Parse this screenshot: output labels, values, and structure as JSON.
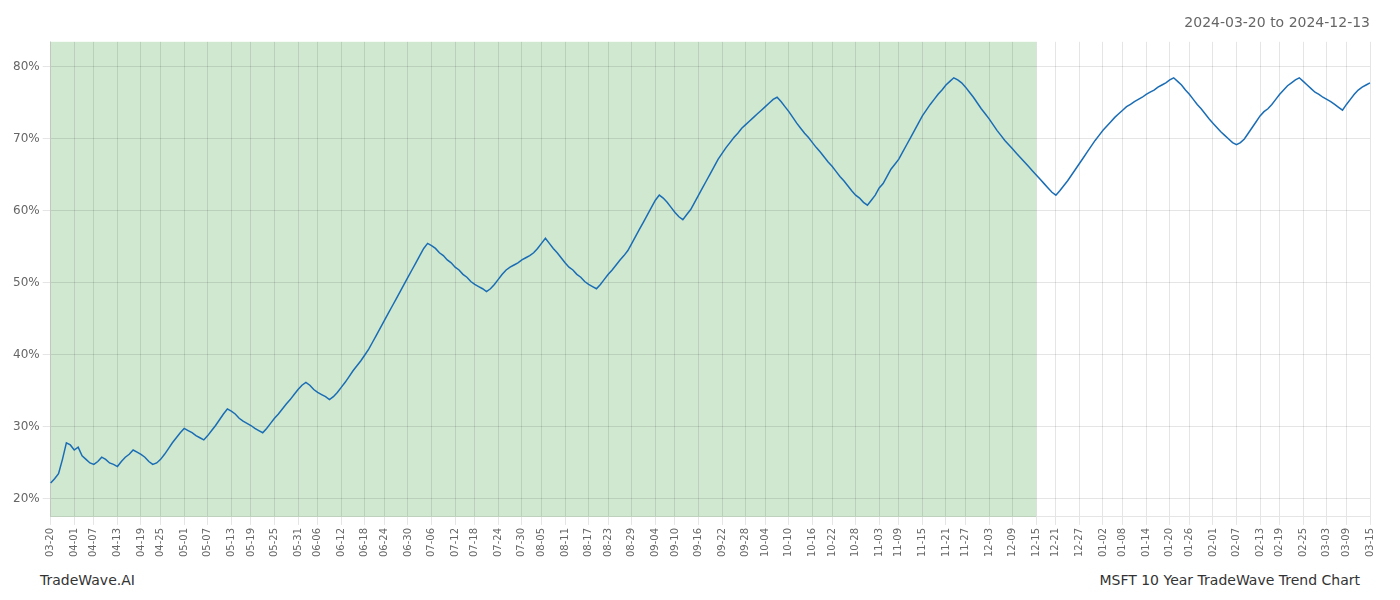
{
  "chart_data": {
    "type": "line",
    "title": "2024-03-20 to 2024-12-13",
    "annotations": [
      "TradeWave.AI",
      "MSFT 10 Year TradeWave Trend Chart"
    ],
    "categories": [
      "03-20",
      null,
      null,
      null,
      null,
      null,
      "04-01",
      null,
      null,
      null,
      null,
      "04-07",
      null,
      null,
      null,
      null,
      null,
      "04-13",
      null,
      null,
      null,
      null,
      null,
      "04-19",
      null,
      null,
      null,
      null,
      "04-25",
      null,
      null,
      null,
      null,
      null,
      "05-01",
      null,
      null,
      null,
      null,
      null,
      "05-07",
      null,
      null,
      null,
      null,
      null,
      "05-13",
      null,
      null,
      null,
      null,
      "05-19",
      null,
      null,
      null,
      null,
      null,
      "05-25",
      null,
      null,
      null,
      null,
      null,
      "05-31",
      null,
      null,
      null,
      null,
      "06-06",
      null,
      null,
      null,
      null,
      null,
      "06-12",
      null,
      null,
      null,
      null,
      null,
      "06-18",
      null,
      null,
      null,
      null,
      "06-24",
      null,
      null,
      null,
      null,
      null,
      "06-30",
      null,
      null,
      null,
      null,
      null,
      "07-06",
      null,
      null,
      null,
      null,
      null,
      "07-12",
      null,
      null,
      null,
      null,
      "07-18",
      null,
      null,
      null,
      null,
      null,
      "07-24",
      null,
      null,
      null,
      null,
      null,
      "07-30",
      null,
      null,
      null,
      null,
      "08-05",
      null,
      null,
      null,
      null,
      null,
      "08-11",
      null,
      null,
      null,
      null,
      null,
      "08-17",
      null,
      null,
      null,
      null,
      "08-23",
      null,
      null,
      null,
      null,
      null,
      "08-29",
      null,
      null,
      null,
      null,
      null,
      "09-04",
      null,
      null,
      null,
      null,
      "09-10",
      null,
      null,
      null,
      null,
      null,
      "09-16",
      null,
      null,
      null,
      null,
      null,
      "09-22",
      null,
      null,
      null,
      null,
      null,
      "09-28",
      null,
      null,
      null,
      null,
      "10-04",
      null,
      null,
      null,
      null,
      null,
      "10-10",
      null,
      null,
      null,
      null,
      null,
      "10-16",
      null,
      null,
      null,
      null,
      "10-22",
      null,
      null,
      null,
      null,
      null,
      "10-28",
      null,
      null,
      null,
      null,
      null,
      "11-03",
      null,
      null,
      null,
      null,
      "11-09",
      null,
      null,
      null,
      null,
      null,
      "11-15",
      null,
      null,
      null,
      null,
      null,
      "11-21",
      null,
      null,
      null,
      null,
      "11-27",
      null,
      null,
      null,
      null,
      null,
      "12-03",
      null,
      null,
      null,
      null,
      null,
      "12-09",
      null,
      null,
      null,
      null,
      null,
      "12-15",
      null,
      null,
      null,
      null,
      "12-21",
      null,
      null,
      null,
      null,
      null,
      "12-27",
      null,
      null,
      null,
      null,
      null,
      "01-02",
      null,
      null,
      null,
      null,
      "01-08",
      null,
      null,
      null,
      null,
      null,
      "01-14",
      null,
      null,
      null,
      null,
      null,
      "01-20",
      null,
      null,
      null,
      null,
      "01-26",
      null,
      null,
      null,
      null,
      null,
      "02-01",
      null,
      null,
      null,
      null,
      null,
      "02-07",
      null,
      null,
      null,
      null,
      null,
      "02-13",
      null,
      null,
      null,
      null,
      "02-19",
      null,
      null,
      null,
      null,
      null,
      "02-25",
      null,
      null,
      null,
      null,
      null,
      "03-03",
      null,
      null,
      null,
      null,
      "03-09",
      null,
      null,
      null,
      null,
      null,
      "03-15"
    ],
    "values": [
      0.222,
      0.228,
      0.235,
      0.255,
      0.278,
      0.275,
      0.268,
      0.272,
      0.26,
      0.255,
      0.25,
      0.248,
      0.252,
      0.258,
      0.255,
      0.25,
      0.248,
      0.245,
      0.252,
      0.258,
      0.262,
      0.268,
      0.265,
      0.262,
      0.258,
      0.252,
      0.248,
      0.25,
      0.255,
      0.262,
      0.27,
      0.278,
      0.285,
      0.292,
      0.298,
      0.295,
      0.292,
      0.288,
      0.285,
      0.282,
      0.288,
      0.295,
      0.302,
      0.31,
      0.318,
      0.325,
      0.322,
      0.318,
      0.312,
      0.308,
      0.305,
      0.302,
      0.298,
      0.295,
      0.292,
      0.298,
      0.305,
      0.312,
      0.318,
      0.325,
      0.332,
      0.338,
      0.345,
      0.352,
      0.358,
      0.362,
      0.358,
      0.352,
      0.348,
      0.345,
      0.342,
      0.338,
      0.342,
      0.348,
      0.355,
      0.362,
      0.37,
      0.378,
      0.385,
      0.392,
      0.4,
      0.408,
      0.418,
      0.428,
      0.438,
      0.448,
      0.458,
      0.468,
      0.478,
      0.488,
      0.498,
      0.508,
      0.518,
      0.528,
      0.538,
      0.548,
      0.555,
      0.552,
      0.548,
      0.542,
      0.538,
      0.532,
      0.528,
      0.522,
      0.518,
      0.512,
      0.508,
      0.502,
      0.498,
      0.495,
      0.492,
      0.488,
      0.492,
      0.498,
      0.505,
      0.512,
      0.518,
      0.522,
      0.525,
      0.528,
      0.532,
      0.535,
      0.538,
      0.542,
      0.548,
      0.555,
      0.562,
      0.555,
      0.548,
      0.542,
      0.535,
      0.528,
      0.522,
      0.518,
      0.512,
      0.508,
      0.502,
      0.498,
      0.495,
      0.492,
      0.498,
      0.505,
      0.512,
      0.518,
      0.525,
      0.532,
      0.538,
      0.545,
      0.555,
      0.565,
      0.575,
      0.585,
      0.595,
      0.605,
      0.615,
      0.622,
      0.618,
      0.612,
      0.605,
      0.598,
      0.592,
      0.588,
      0.595,
      0.602,
      0.612,
      0.622,
      0.632,
      0.642,
      0.652,
      0.662,
      0.672,
      0.68,
      0.688,
      0.695,
      0.702,
      0.708,
      0.715,
      0.72,
      0.725,
      0.73,
      0.735,
      0.74,
      0.745,
      0.75,
      0.755,
      0.758,
      0.752,
      0.745,
      0.738,
      0.73,
      0.722,
      0.715,
      0.708,
      0.702,
      0.695,
      0.688,
      0.682,
      0.675,
      0.668,
      0.662,
      0.655,
      0.648,
      0.642,
      0.635,
      0.628,
      0.622,
      0.618,
      0.612,
      0.608,
      0.615,
      0.622,
      0.632,
      0.638,
      0.648,
      0.658,
      0.665,
      0.672,
      0.682,
      0.692,
      0.702,
      0.712,
      0.722,
      0.732,
      0.74,
      0.748,
      0.755,
      0.762,
      0.768,
      0.775,
      0.78,
      0.785,
      0.782,
      0.778,
      0.772,
      0.765,
      0.758,
      0.75,
      0.742,
      0.735,
      0.728,
      0.72,
      0.712,
      0.705,
      0.698,
      0.692,
      0.686,
      0.68,
      0.674,
      0.668,
      0.662,
      0.656,
      0.65,
      0.644,
      0.638,
      0.632,
      0.626,
      0.622,
      0.628,
      0.635,
      0.642,
      0.65,
      0.658,
      0.666,
      0.674,
      0.682,
      0.69,
      0.698,
      0.705,
      0.712,
      0.718,
      0.724,
      0.73,
      0.735,
      0.74,
      0.745,
      0.748,
      0.752,
      0.755,
      0.758,
      0.762,
      0.765,
      0.768,
      0.772,
      0.775,
      0.778,
      0.782,
      0.785,
      0.78,
      0.775,
      0.768,
      0.762,
      0.755,
      0.748,
      0.742,
      0.735,
      0.728,
      0.722,
      0.716,
      0.71,
      0.705,
      0.7,
      0.695,
      0.692,
      0.695,
      0.7,
      0.708,
      0.716,
      0.724,
      0.732,
      0.738,
      0.742,
      0.748,
      0.755,
      0.762,
      0.768,
      0.774,
      0.778,
      0.782,
      0.785,
      0.78,
      0.775,
      0.77,
      0.765,
      0.762,
      0.758,
      0.755,
      0.752,
      0.748,
      0.744,
      0.74,
      0.748,
      0.755,
      0.762,
      0.768,
      0.772,
      0.775,
      0.778
    ],
    "color": "#1a6db5",
    "shaded_region": {
      "from": "03-20",
      "to": "12-15",
      "color": "#d0e8d0"
    },
    "ylim": [
      0.175,
      0.835
    ],
    "yticks": [
      {
        "value": 0.2,
        "label": "20%"
      },
      {
        "value": 0.3,
        "label": "30%"
      },
      {
        "value": 0.4,
        "label": "40%"
      },
      {
        "value": 0.5,
        "label": "50%"
      },
      {
        "value": 0.6,
        "label": "60%"
      },
      {
        "value": 0.7,
        "label": "70%"
      },
      {
        "value": 0.8,
        "label": "80%"
      }
    ],
    "grid": true
  }
}
